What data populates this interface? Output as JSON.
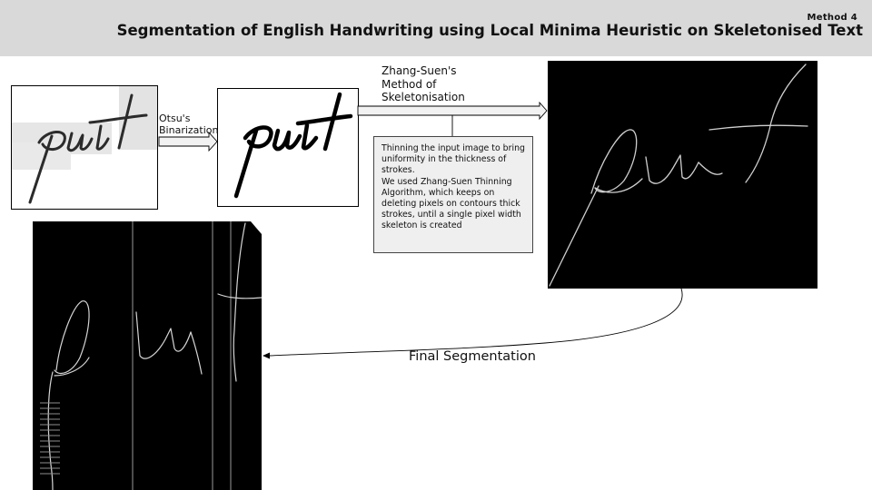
{
  "header": {
    "method": "Method 4",
    "title": "Segmentation of English Handwriting using Local Minima Heuristic on Skeletonised Text"
  },
  "steps": {
    "binarization_label_line1": "Otsu's",
    "binarization_label_line2": "Binarization",
    "skeleton_label_line1": "Zhang-Suen's",
    "skeleton_label_line2": "Method of",
    "skeleton_label_line3": "Skeletonisation",
    "final_label": "Final Segmentation"
  },
  "note": {
    "paragraph1": "Thinning the input image to bring uniformity in the thickness of strokes.",
    "paragraph2": "We used Zhang-Suen Thinning Algorithm, which keeps on deleting pixels on contours thick strokes, until a single pixel width skeleton is created"
  },
  "colors": {
    "header_bg": "#d9d9d9",
    "note_bg": "#efefef",
    "arrow_fill": "#f2f2f2"
  }
}
